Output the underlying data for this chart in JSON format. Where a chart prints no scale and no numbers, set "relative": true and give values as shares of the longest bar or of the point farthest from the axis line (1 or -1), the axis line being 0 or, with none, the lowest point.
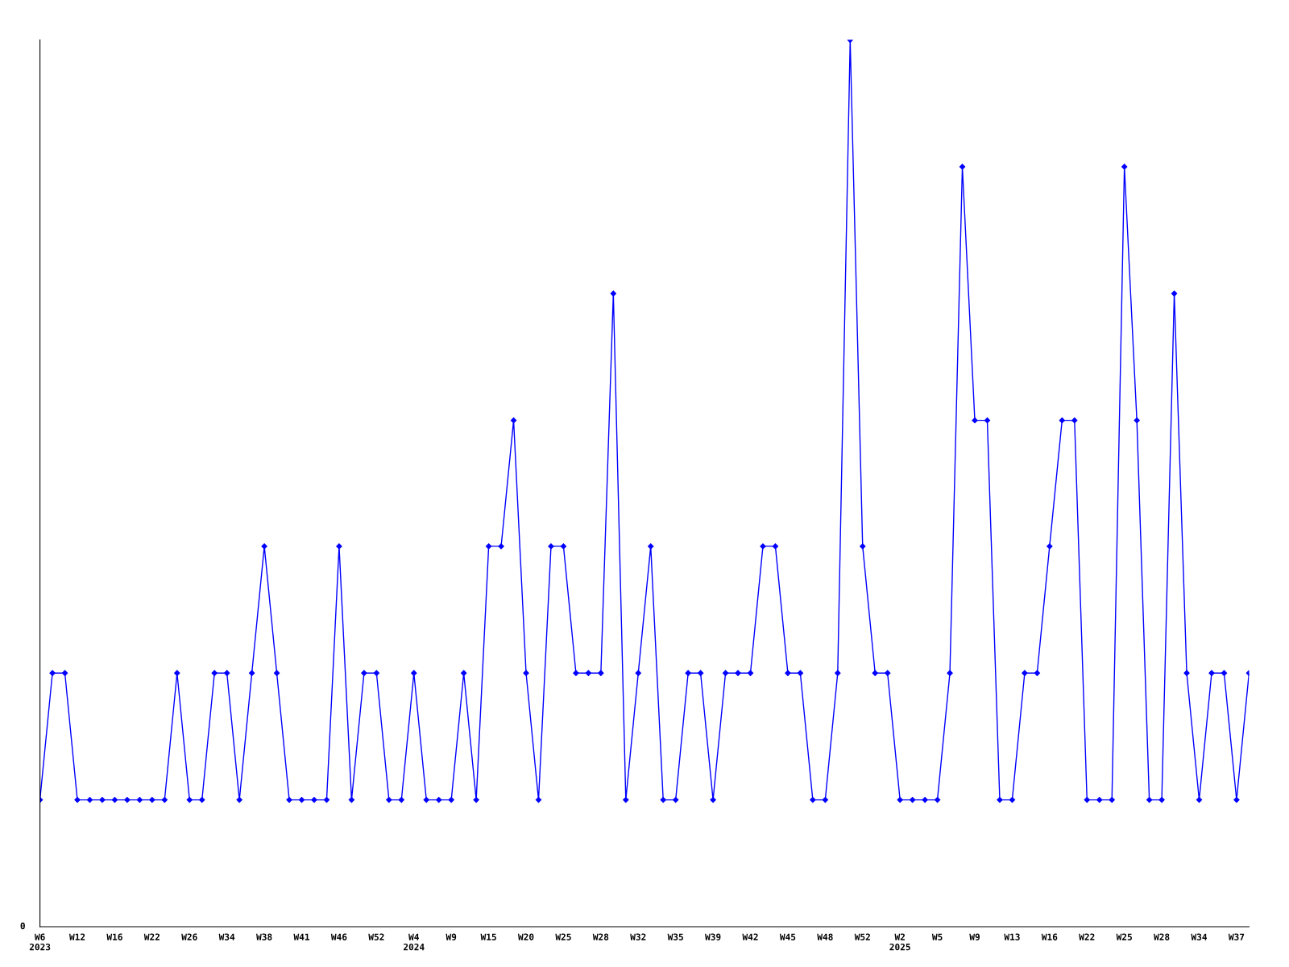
{
  "chart_data": {
    "type": "line",
    "relative": true,
    "marker": "diamond",
    "line_style": "solid",
    "grid": false,
    "categories": [
      "W6\n2023",
      null,
      null,
      "W12",
      null,
      null,
      "W16",
      null,
      null,
      "W22",
      null,
      null,
      "W26",
      null,
      null,
      "W34",
      null,
      null,
      "W38",
      null,
      null,
      "W41",
      null,
      null,
      "W46",
      null,
      null,
      "W52",
      null,
      null,
      "W4\n2024",
      null,
      null,
      "W9",
      null,
      null,
      "W15",
      null,
      null,
      "W20",
      null,
      null,
      "W25",
      null,
      null,
      "W28",
      null,
      null,
      "W32",
      null,
      null,
      "W35",
      null,
      null,
      "W39",
      null,
      null,
      "W42",
      null,
      null,
      "W45",
      null,
      null,
      "W48",
      null,
      null,
      "W52",
      null,
      null,
      "W2\n2025",
      null,
      null,
      "W5",
      null,
      null,
      "W9",
      null,
      null,
      "W13",
      null,
      null,
      "W16",
      null,
      null,
      "W22",
      null,
      null,
      "W25",
      null,
      null,
      "W28",
      null,
      null,
      "W34",
      null,
      null,
      "W37",
      null
    ],
    "series": [
      {
        "color": "#0000ff",
        "values": [
          0.143,
          0.286,
          0.286,
          0.143,
          0.143,
          0.143,
          0.143,
          0.143,
          0.143,
          0.143,
          0.143,
          0.286,
          0.143,
          0.143,
          0.286,
          0.286,
          0.143,
          0.286,
          0.429,
          0.286,
          0.143,
          0.143,
          0.143,
          0.143,
          0.429,
          0.143,
          0.286,
          0.286,
          0.143,
          0.143,
          0.286,
          0.143,
          0.143,
          0.143,
          0.286,
          0.143,
          0.429,
          0.429,
          0.571,
          0.286,
          0.143,
          0.429,
          0.429,
          0.286,
          0.286,
          0.286,
          0.714,
          0.143,
          0.286,
          0.429,
          0.143,
          0.143,
          0.286,
          0.286,
          0.143,
          0.286,
          0.286,
          0.286,
          0.429,
          0.429,
          0.286,
          0.286,
          0.143,
          0.143,
          0.286,
          1,
          0.429,
          0.286,
          0.286,
          0.143,
          0.143,
          0.143,
          0.143,
          0.286,
          0.857,
          0.571,
          0.571,
          0.143,
          0.143,
          0.286,
          0.286,
          0.429,
          0.571,
          0.571,
          0.143,
          0.143,
          0.143,
          0.857,
          0.571,
          0.143,
          0.143,
          0.714,
          0.286,
          0.143,
          0.286,
          0.286,
          0.143,
          0.286
        ]
      }
    ],
    "annotations": [
      "0"
    ]
  }
}
